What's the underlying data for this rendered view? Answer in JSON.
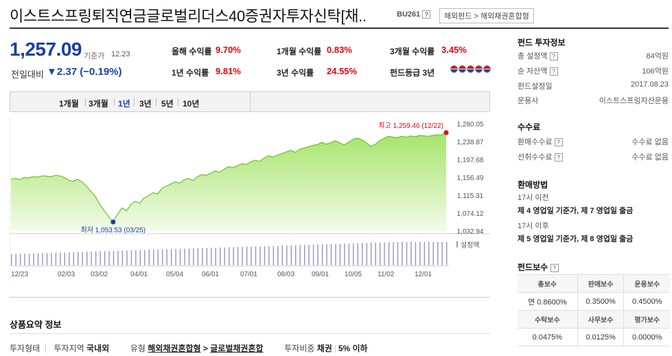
{
  "header": {
    "title": "이스트스프링퇴직연금글로벌리더스40증권자투자신탁[채..",
    "code": "BU261",
    "help": "?",
    "breadcrumb": "해외펀드 > 해외채권혼합형"
  },
  "price": {
    "value": "1,257.09",
    "label": "기준가",
    "date": "12.23",
    "change_label": "전일대비",
    "change_value": "▼2.37 (−0.19%)"
  },
  "returns": [
    {
      "label": "올해 수익률",
      "value": "9.70%"
    },
    {
      "label": "1개월 수익률",
      "value": "0.83%"
    },
    {
      "label": "3개월 수익률",
      "value": "3.45%"
    },
    {
      "label": "1년 수익률",
      "value": "9.81%"
    },
    {
      "label": "3년 수익률",
      "value": "24.55%"
    },
    {
      "label": "펀드등급 3년",
      "value": ""
    }
  ],
  "grade_level": 5,
  "period_tabs": [
    "1개월",
    "3개월",
    "1년",
    "3년",
    "5년",
    "10년"
  ],
  "active_tab": "1년",
  "chart_data": {
    "type": "area",
    "x_tick_labels": [
      "12/23",
      "02/03",
      "03/02",
      "04/01",
      "05/04",
      "06/01",
      "07/01",
      "08/03",
      "09/01",
      "10/05",
      "11/02",
      "12/01"
    ],
    "y_tick_labels": [
      "1,280.05",
      "1,238.87",
      "1,197.68",
      "1,156.49",
      "1,115.31",
      "1,074.12",
      "1,032.94"
    ],
    "ylim": [
      1032.94,
      1280.05
    ],
    "series": [
      {
        "values": [
          1152,
          1154,
          1151,
          1156,
          1155,
          1158,
          1157,
          1160,
          1159,
          1158,
          1161,
          1160,
          1156,
          1150,
          1147,
          1152,
          1146,
          1136,
          1124,
          1112,
          1094,
          1079,
          1066,
          1053.53,
          1071,
          1086,
          1079,
          1094,
          1101,
          1097,
          1109,
          1114,
          1121,
          1118,
          1131,
          1136,
          1141,
          1146,
          1143,
          1151,
          1154,
          1149,
          1158,
          1163,
          1161,
          1166,
          1171,
          1168,
          1175,
          1181,
          1179,
          1183,
          1188,
          1186,
          1192,
          1196,
          1193,
          1201,
          1206,
          1203,
          1208,
          1211,
          1215,
          1219,
          1214,
          1221,
          1224,
          1227,
          1230,
          1232,
          1237,
          1233,
          1236,
          1241,
          1236,
          1231,
          1237,
          1244,
          1247,
          1243,
          1236,
          1228,
          1232,
          1241,
          1246,
          1251,
          1249,
          1248,
          1251,
          1249,
          1252,
          1250,
          1253,
          1252,
          1251,
          1253,
          1255,
          1254,
          1259.46
        ]
      }
    ],
    "max_label": "최고 1,259.46 (12/22)",
    "min_label": "최저 1,053.53 (03/25)",
    "volume_label": "설정액",
    "volume_values": [
      40,
      41,
      41,
      42,
      42,
      43,
      43,
      44,
      44,
      45,
      45,
      46,
      46,
      47,
      47,
      48,
      48,
      49,
      49,
      50,
      50,
      51,
      51,
      52,
      52,
      53,
      53,
      54,
      54,
      55,
      55,
      56,
      56,
      57,
      57,
      58,
      58,
      59,
      59,
      60,
      60,
      61,
      61,
      62,
      62,
      63,
      63,
      64,
      64,
      65,
      65,
      66,
      66,
      67,
      67,
      68,
      68,
      69,
      69,
      70,
      70,
      71,
      71,
      72,
      72,
      73,
      73,
      74,
      74,
      75,
      75,
      76,
      76,
      77,
      77,
      78,
      78,
      79,
      79,
      80,
      80,
      81,
      81,
      82,
      82,
      83,
      83,
      84,
      84,
      84,
      84,
      84,
      84,
      84,
      84,
      84,
      84,
      84,
      84
    ]
  },
  "summary": {
    "title": "상품요약 정보",
    "row_label": "투자형태",
    "region_label": "투자지역",
    "region_value": "국내외",
    "type_label": "유형",
    "type_value_1": "해외채권혼합형",
    "type_arrow": ">",
    "type_value_2": "글로벌채권혼합",
    "ratio_label": "투자비중",
    "ratio_value_1": "채권",
    "ratio_value_2": "5% 이하"
  },
  "side": {
    "info_title": "펀드 투자정보",
    "info_rows": [
      {
        "label": "총 설정액",
        "help": true,
        "value": "84억원"
      },
      {
        "label": "순 자산액",
        "help": true,
        "value": "106억원"
      },
      {
        "label": "펀드설정일",
        "help": false,
        "value": "2017.08.23"
      },
      {
        "label": "운용사",
        "help": false,
        "value": "이스트스프링자산운용"
      }
    ],
    "fee_title": "수수료",
    "fee_rows": [
      {
        "label": "환매수수료",
        "value": "수수료 없음"
      },
      {
        "label": "선취수수료",
        "value": "수수료 없음"
      }
    ],
    "redeem_title": "환매방법",
    "redeem_lines": [
      {
        "text": "17시 이전",
        "bold": false
      },
      {
        "text": "제 4 영업일 기준가, 제 7 영업일 출금",
        "bold": true
      },
      {
        "text": "17시 이후",
        "bold": false
      },
      {
        "text": "제 5 영업일 기준가, 제 8 영업일 출금",
        "bold": true
      }
    ],
    "comp_title": "펀드보수",
    "comp_head1": [
      "총보수",
      "판매보수",
      "운용보수"
    ],
    "comp_row1": [
      "연 0.8600%",
      "0.3500%",
      "0.4500%"
    ],
    "comp_head2": [
      "수탁보수",
      "사무보수",
      "평가보수"
    ],
    "comp_row2": [
      "0.0475%",
      "0.0125%",
      "0.0000%"
    ]
  },
  "colors": {
    "accent_blue": "#1a3fa5",
    "positive_red": "#e60012",
    "area_green": "#7ed321"
  }
}
